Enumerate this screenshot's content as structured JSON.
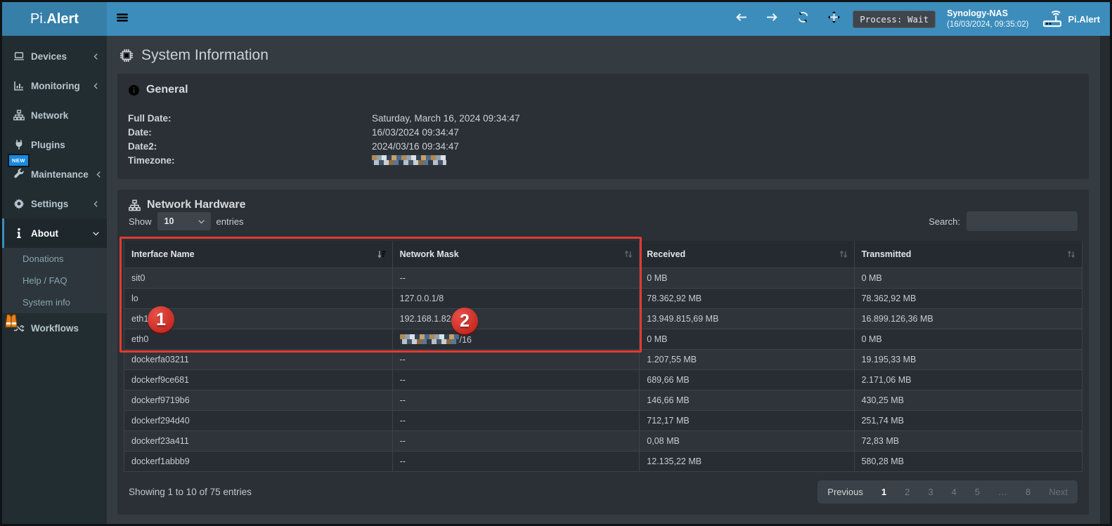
{
  "colors": {
    "accent_blue": "#3c8dbc",
    "logo_bg": "#367fa9",
    "sidebar_bg": "#222d32",
    "panel_bg": "#2a3036",
    "annotation_red": "#e13b30",
    "new_badge_blue": "#1989e0"
  },
  "navbar": {
    "logo_prefix": "Pi.",
    "logo_suffix": "Alert",
    "controls": [
      {
        "icon": "arrow-left-icon"
      },
      {
        "icon": "arrow-right-icon"
      },
      {
        "icon": "refresh-icon"
      },
      {
        "icon": "move-icon"
      }
    ],
    "process_badge": "Process: Wait",
    "device_name": "Synology-NAS",
    "device_time": "(16/03/2024, 09:35:02)",
    "brand": "Pi.Alert"
  },
  "sidebar": {
    "items": [
      {
        "label": "Devices",
        "icon": "laptop-icon",
        "chevron": "left"
      },
      {
        "label": "Monitoring",
        "icon": "chart-icon",
        "chevron": "left"
      },
      {
        "label": "Network",
        "icon": "sitemap-icon",
        "chevron": ""
      },
      {
        "label": "Plugins",
        "icon": "plug-icon",
        "chevron": ""
      },
      {
        "label": "Maintenance",
        "icon": "wrench-icon",
        "chevron": "left",
        "badge": "NEW"
      },
      {
        "label": "Settings",
        "icon": "gear-icon",
        "chevron": "left"
      },
      {
        "label": "About",
        "icon": "info-icon",
        "chevron": "down",
        "active": true,
        "submenu": [
          "Donations",
          "Help / FAQ",
          "System info"
        ]
      },
      {
        "label": "Workflows",
        "icon": "shuffle-icon",
        "chevron": "",
        "construction": true
      }
    ]
  },
  "page": {
    "title": "System Information"
  },
  "general": {
    "heading": "General",
    "rows": [
      {
        "label": "Full Date:",
        "value": "Saturday, March 16, 2024 09:34:47"
      },
      {
        "label": "Date:",
        "value": "16/03/2024 09:34:47"
      },
      {
        "label": "Date2:",
        "value": "2024/03/16 09:34:47"
      },
      {
        "label": "Timezone:",
        "value": "",
        "censored": true
      }
    ]
  },
  "network_hardware": {
    "heading": "Network Hardware",
    "show_label": "Show",
    "page_length": "10",
    "entries_label": "entries",
    "search_label": "Search:",
    "search_value": "",
    "columns": [
      "Interface Name",
      "Network Mask",
      "Received",
      "Transmitted"
    ],
    "rows": [
      {
        "interface": "sit0",
        "mask": "--",
        "mask_censored": false,
        "received": "0 MB",
        "transmitted": "0 MB"
      },
      {
        "interface": "lo",
        "mask": "127.0.0.1/8",
        "mask_censored": false,
        "received": "78.362,92 MB",
        "transmitted": "78.362,92 MB"
      },
      {
        "interface": "eth1",
        "mask": "192.168.1.82/24",
        "mask_censored": false,
        "received": "13.949.815,69 MB",
        "transmitted": "16.899.126,36 MB"
      },
      {
        "interface": "eth0",
        "mask": "/16",
        "mask_censored": true,
        "received": "0 MB",
        "transmitted": "0 MB"
      },
      {
        "interface": "dockerfa03211",
        "mask": "--",
        "mask_censored": false,
        "received": "1.207,55 MB",
        "transmitted": "19.195,33 MB"
      },
      {
        "interface": "dockerf9ce681",
        "mask": "--",
        "mask_censored": false,
        "received": "689,66 MB",
        "transmitted": "2.171,06 MB"
      },
      {
        "interface": "dockerf9719b6",
        "mask": "--",
        "mask_censored": false,
        "received": "146,66 MB",
        "transmitted": "430,25 MB"
      },
      {
        "interface": "dockerf294d40",
        "mask": "--",
        "mask_censored": false,
        "received": "712,17 MB",
        "transmitted": "251,74 MB"
      },
      {
        "interface": "dockerf23a411",
        "mask": "--",
        "mask_censored": false,
        "received": "0,08 MB",
        "transmitted": "72,83 MB"
      },
      {
        "interface": "dockerf1abbb9",
        "mask": "--",
        "mask_censored": false,
        "received": "12.135,22 MB",
        "transmitted": "580,28 MB"
      }
    ],
    "info": "Showing 1 to 10 of 75 entries",
    "pagination": [
      {
        "label": "Previous",
        "state": "enabled"
      },
      {
        "label": "1",
        "state": "active"
      },
      {
        "label": "2",
        "state": "muted"
      },
      {
        "label": "3",
        "state": "muted"
      },
      {
        "label": "4",
        "state": "muted"
      },
      {
        "label": "5",
        "state": "muted"
      },
      {
        "label": "…",
        "state": "muted"
      },
      {
        "label": "8",
        "state": "muted"
      },
      {
        "label": "Next",
        "state": "disabled"
      }
    ]
  },
  "annotations": {
    "badge1": "1",
    "badge2": "2"
  }
}
